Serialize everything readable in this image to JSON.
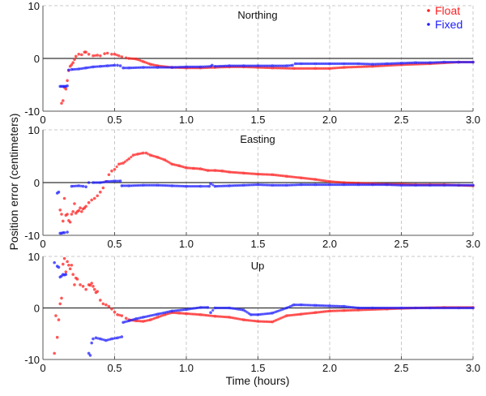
{
  "chart_data": {
    "type": "scatter",
    "xlabel": "Time (hours)",
    "ylabel": "Position error (centimeters)",
    "xlim": [
      0,
      3.0
    ],
    "xticks": [
      "0",
      "0.5",
      "1.0",
      "1.5",
      "2.0",
      "2.5",
      "3.0"
    ],
    "xtick_values": [
      0,
      0.5,
      1.0,
      1.5,
      2.0,
      2.5,
      3.0
    ],
    "ylim": [
      -10,
      10
    ],
    "yticks": [
      "-10",
      "0",
      "10"
    ],
    "ytick_values": [
      -10,
      0,
      10
    ],
    "grid": true,
    "legend": {
      "placement": "top-right",
      "entries": [
        {
          "name": "Float",
          "color": "#ff2020"
        },
        {
          "name": "Fixed",
          "color": "#2020ff"
        }
      ]
    },
    "panels": [
      {
        "title": "Northing",
        "series": [
          {
            "name": "Float",
            "color": "#ff2020",
            "x": [
              0.13,
              0.14,
              0.15,
              0.16,
              0.17,
              0.18,
              0.19,
              0.2,
              0.21,
              0.22,
              0.23,
              0.25,
              0.27,
              0.29,
              0.3,
              0.32,
              0.35,
              0.38,
              0.4,
              0.43,
              0.45,
              0.48,
              0.5,
              0.53,
              0.55,
              0.58,
              0.6,
              0.65,
              0.7,
              0.75,
              0.8,
              0.9,
              1.0,
              1.1,
              1.2,
              1.3,
              1.4,
              1.5,
              1.6,
              1.75,
              1.9,
              2.0,
              2.1,
              2.3,
              2.5,
              2.7,
              2.9,
              3.0
            ],
            "y": [
              -8.5,
              -8.0,
              -5.5,
              -5.8,
              -4.2,
              -2.3,
              -1.5,
              -1.2,
              -0.8,
              -0.2,
              0.4,
              0.8,
              0.7,
              1.2,
              1.2,
              0.8,
              0.5,
              0.6,
              0.5,
              0.9,
              1.0,
              0.8,
              0.8,
              0.5,
              0.3,
              0.1,
              0.0,
              -0.1,
              -0.6,
              -1.1,
              -1.4,
              -1.7,
              -1.8,
              -1.8,
              -1.7,
              -1.6,
              -1.6,
              -1.7,
              -1.8,
              -1.9,
              -1.9,
              -1.9,
              -1.7,
              -1.5,
              -1.2,
              -1.0,
              -0.7,
              -0.7
            ]
          },
          {
            "name": "Fixed",
            "color": "#2020ff",
            "x": [
              0.12,
              0.13,
              0.14,
              0.15,
              0.16,
              0.17,
              0.18,
              0.2,
              0.25,
              0.3,
              0.35,
              0.4,
              0.45,
              0.5,
              0.52,
              0.54,
              0.56,
              0.6,
              0.7,
              0.8,
              0.9,
              1.0,
              1.1,
              1.17,
              1.18,
              1.2,
              1.3,
              1.4,
              1.5,
              1.6,
              1.7,
              1.74,
              1.76,
              1.8,
              1.9,
              2.0,
              2.1,
              2.2,
              2.3,
              2.4,
              2.5,
              2.6,
              2.7,
              2.8,
              2.9,
              3.0
            ],
            "y": [
              -5.3,
              -5.3,
              -5.3,
              -5.3,
              -5.3,
              -5.2,
              -2.2,
              -2.1,
              -2.0,
              -1.8,
              -1.6,
              -1.5,
              -1.4,
              -1.3,
              -1.3,
              -1.4,
              -1.8,
              -1.8,
              -1.7,
              -1.7,
              -1.7,
              -1.6,
              -1.6,
              -1.5,
              -1.3,
              -1.5,
              -1.4,
              -1.4,
              -1.4,
              -1.4,
              -1.4,
              -1.3,
              -1.0,
              -1.0,
              -1.0,
              -1.0,
              -1.0,
              -1.0,
              -1.1,
              -1.0,
              -0.9,
              -0.8,
              -0.8,
              -0.7,
              -0.7,
              -0.7
            ]
          }
        ]
      },
      {
        "title": "Easting",
        "series": [
          {
            "name": "Float",
            "color": "#ff2020",
            "x": [
              0.12,
              0.13,
              0.14,
              0.15,
              0.16,
              0.17,
              0.18,
              0.19,
              0.2,
              0.21,
              0.22,
              0.23,
              0.24,
              0.25,
              0.26,
              0.27,
              0.28,
              0.29,
              0.3,
              0.32,
              0.34,
              0.36,
              0.38,
              0.4,
              0.42,
              0.44,
              0.46,
              0.48,
              0.5,
              0.53,
              0.56,
              0.6,
              0.63,
              0.66,
              0.7,
              0.72,
              0.75,
              0.8,
              0.85,
              0.9,
              0.95,
              1.0,
              1.05,
              1.1,
              1.15,
              1.2,
              1.25,
              1.3,
              1.4,
              1.5,
              1.6,
              1.7,
              1.8,
              1.9,
              2.0,
              2.1,
              2.2,
              2.3,
              2.4,
              2.5,
              2.6,
              2.7,
              2.8,
              2.9,
              3.0
            ],
            "y": [
              -5.2,
              -6.0,
              -7.3,
              -3.0,
              -6.2,
              -6.0,
              -7.2,
              -7.5,
              -6.0,
              -5.5,
              -4.0,
              -5.8,
              -5.5,
              -5.3,
              -4.8,
              -5.5,
              -5.0,
              -4.8,
              -4.5,
              -3.8,
              -3.3,
              -3.0,
              -2.5,
              -1.8,
              -1.0,
              0.2,
              1.5,
              2.2,
              2.5,
              3.5,
              3.7,
              4.5,
              5.2,
              5.4,
              5.6,
              5.6,
              5.2,
              4.8,
              4.3,
              3.5,
              3.2,
              2.8,
              2.7,
              2.6,
              2.3,
              2.3,
              2.2,
              2.0,
              1.8,
              1.6,
              1.5,
              1.2,
              0.9,
              0.6,
              0.2,
              0.0,
              -0.1,
              -0.2,
              -0.3,
              -0.3,
              -0.4,
              -0.4,
              -0.4,
              -0.5,
              -0.6
            ]
          },
          {
            "name": "Fixed",
            "color": "#2020ff",
            "x": [
              0.1,
              0.11,
              0.12,
              0.13,
              0.14,
              0.15,
              0.17,
              0.2,
              0.25,
              0.28,
              0.3,
              0.32,
              0.35,
              0.4,
              0.45,
              0.5,
              0.54,
              0.55,
              0.6,
              0.7,
              0.8,
              0.9,
              1.0,
              1.1,
              1.16,
              1.17,
              1.2,
              1.3,
              1.4,
              1.5,
              1.6,
              1.7,
              1.8,
              1.9,
              2.0,
              2.1,
              2.2,
              2.3,
              2.4,
              2.5,
              2.6,
              2.7,
              2.8,
              2.9,
              3.0
            ],
            "y": [
              -2.0,
              -1.8,
              -9.6,
              -9.6,
              -9.5,
              -9.5,
              -9.4,
              -0.7,
              -0.6,
              -0.7,
              -0.8,
              0.0,
              0.0,
              0.0,
              0.2,
              0.3,
              0.3,
              -0.6,
              -0.6,
              -0.5,
              -0.5,
              -0.6,
              -0.7,
              -0.7,
              -0.7,
              -0.2,
              -0.7,
              -0.6,
              -0.5,
              -0.4,
              -0.5,
              -0.5,
              -0.4,
              -0.4,
              -0.4,
              -0.4,
              -0.4,
              -0.4,
              -0.4,
              -0.5,
              -0.5,
              -0.5,
              -0.5,
              -0.5,
              -0.5
            ]
          }
        ]
      },
      {
        "title": "Up",
        "series": [
          {
            "name": "Float",
            "color": "#ff2020",
            "x": [
              0.08,
              0.09,
              0.1,
              0.11,
              0.12,
              0.13,
              0.14,
              0.15,
              0.16,
              0.17,
              0.18,
              0.19,
              0.2,
              0.21,
              0.22,
              0.23,
              0.24,
              0.26,
              0.28,
              0.3,
              0.32,
              0.33,
              0.34,
              0.35,
              0.36,
              0.37,
              0.38,
              0.4,
              0.42,
              0.44,
              0.46,
              0.48,
              0.5,
              0.52,
              0.55,
              0.58,
              0.6,
              0.65,
              0.7,
              0.75,
              0.8,
              0.85,
              0.9,
              0.95,
              1.0,
              1.1,
              1.2,
              1.3,
              1.4,
              1.5,
              1.6,
              1.7,
              1.8,
              1.9,
              2.0,
              2.1,
              2.2,
              2.4,
              2.6,
              2.8,
              3.0
            ],
            "y": [
              -8.8,
              -1.5,
              -5.7,
              -2.3,
              0.8,
              1.9,
              8.5,
              9.6,
              7.0,
              9.0,
              8.3,
              7.6,
              8.3,
              6.5,
              4.5,
              5.8,
              5.6,
              4.5,
              4.2,
              3.6,
              4.5,
              4.4,
              4.8,
              4.2,
              3.6,
              3.0,
              3.2,
              1.5,
              0.8,
              0.6,
              0.3,
              -0.2,
              -0.8,
              -1.3,
              -1.5,
              -2.0,
              -2.3,
              -2.5,
              -2.6,
              -2.3,
              -1.8,
              -1.3,
              -0.9,
              -1.0,
              -1.1,
              -1.3,
              -1.6,
              -1.8,
              -2.3,
              -2.6,
              -2.7,
              -1.5,
              -1.2,
              -0.9,
              -0.6,
              -0.5,
              -0.4,
              -0.2,
              0.0,
              0.1,
              0.1
            ]
          },
          {
            "name": "Fixed",
            "color": "#2020ff",
            "x": [
              0.08,
              0.1,
              0.11,
              0.12,
              0.13,
              0.14,
              0.15,
              0.16,
              0.32,
              0.33,
              0.34,
              0.35,
              0.37,
              0.4,
              0.44,
              0.48,
              0.52,
              0.55,
              0.56,
              0.6,
              0.65,
              0.7,
              0.8,
              0.9,
              1.0,
              1.1,
              1.15,
              1.17,
              1.2,
              1.3,
              1.4,
              1.45,
              1.5,
              1.6,
              1.7,
              1.75,
              1.8,
              1.9,
              2.0,
              2.1,
              2.2,
              2.3,
              2.5,
              2.7,
              2.9,
              3.0
            ],
            "y": [
              8.8,
              8.1,
              7.9,
              6.0,
              6.2,
              6.5,
              6.4,
              6.5,
              -8.8,
              -9.2,
              -6.8,
              -6.0,
              -5.8,
              -6.0,
              -6.3,
              -6.0,
              -5.8,
              -5.6,
              -2.8,
              -2.5,
              -2.1,
              -1.8,
              -1.2,
              -0.6,
              -0.3,
              0.1,
              0.1,
              -0.9,
              0.0,
              0.0,
              -0.4,
              -1.3,
              -1.3,
              -1.0,
              0.0,
              0.6,
              0.6,
              0.5,
              0.4,
              0.3,
              0.0,
              0.0,
              0.0,
              0.0,
              0.0,
              0.0
            ]
          }
        ]
      }
    ]
  }
}
